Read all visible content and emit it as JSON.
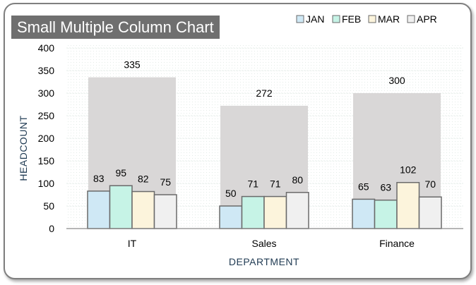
{
  "chart_data": {
    "type": "bar",
    "title": "Small Multiple Column Chart",
    "xlabel": "DEPARTMENT",
    "ylabel": "HEADCOUNT",
    "ylim": [
      0,
      400
    ],
    "yticks": [
      "0",
      "50",
      "100",
      "150",
      "200",
      "250",
      "300",
      "350",
      "400"
    ],
    "categories": [
      "IT",
      "Sales",
      "Finance"
    ],
    "totals": [
      335,
      272,
      300
    ],
    "series": [
      {
        "name": "JAN",
        "values": [
          83,
          50,
          65
        ],
        "color": "#cfe8f5"
      },
      {
        "name": "FEB",
        "values": [
          95,
          71,
          63
        ],
        "color": "#c6f3e6"
      },
      {
        "name": "MAR",
        "values": [
          82,
          71,
          102
        ],
        "color": "#fcf4dc"
      },
      {
        "name": "APR",
        "values": [
          75,
          80,
          70
        ],
        "color": "#f0f0f0"
      }
    ],
    "total_color": "#d9d7d7",
    "bar_stroke": "#6a6a6a",
    "legend_position": "top-right",
    "grid": true
  }
}
